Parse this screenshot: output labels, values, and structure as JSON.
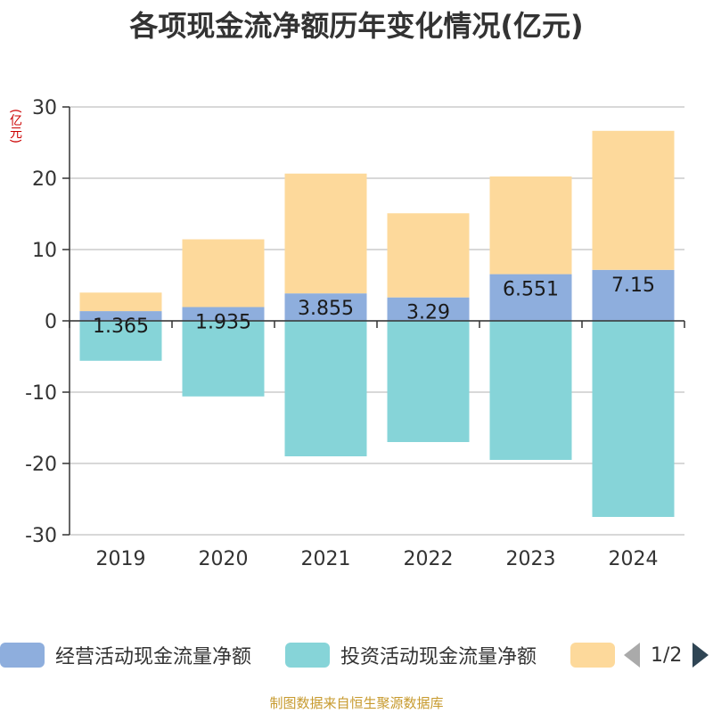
{
  "title": "各项现金流净额历年变化情况(亿元)",
  "unit_label": "(亿元)",
  "source": "制图数据来自恒生聚源数据库",
  "legend": {
    "items": [
      {
        "label": "经营活动现金流量净额",
        "color": "#8eaedd"
      },
      {
        "label": "投资活动现金流量净额",
        "color": "#86d4d8"
      },
      {
        "label": "",
        "color": "#fdd99b"
      }
    ],
    "page": "1/2"
  },
  "chart_data": {
    "type": "bar",
    "stacked": true,
    "title": "各项现金流净额历年变化情况(亿元)",
    "ylabel": "(亿元)",
    "categories": [
      "2019",
      "2020",
      "2021",
      "2022",
      "2023",
      "2024"
    ],
    "ylim": [
      -30,
      30
    ],
    "yticks": [
      30,
      20,
      10,
      0,
      -10,
      -20,
      -30
    ],
    "series": [
      {
        "name": "经营活动现金流量净额",
        "color": "#8eaedd",
        "values": [
          1.365,
          1.935,
          3.855,
          3.29,
          6.551,
          7.15
        ],
        "labels": [
          "1.365",
          "1.935",
          "3.855",
          "3.29",
          "6.551",
          "7.15"
        ]
      },
      {
        "name": "投资活动现金流量净额",
        "color": "#86d4d8",
        "values": [
          -5.6,
          -10.6,
          -19.0,
          -17.0,
          -19.5,
          -27.5
        ]
      },
      {
        "name": "",
        "color": "#fdd99b",
        "values": [
          2.6,
          9.5,
          16.8,
          11.8,
          13.7,
          19.5
        ]
      }
    ]
  }
}
